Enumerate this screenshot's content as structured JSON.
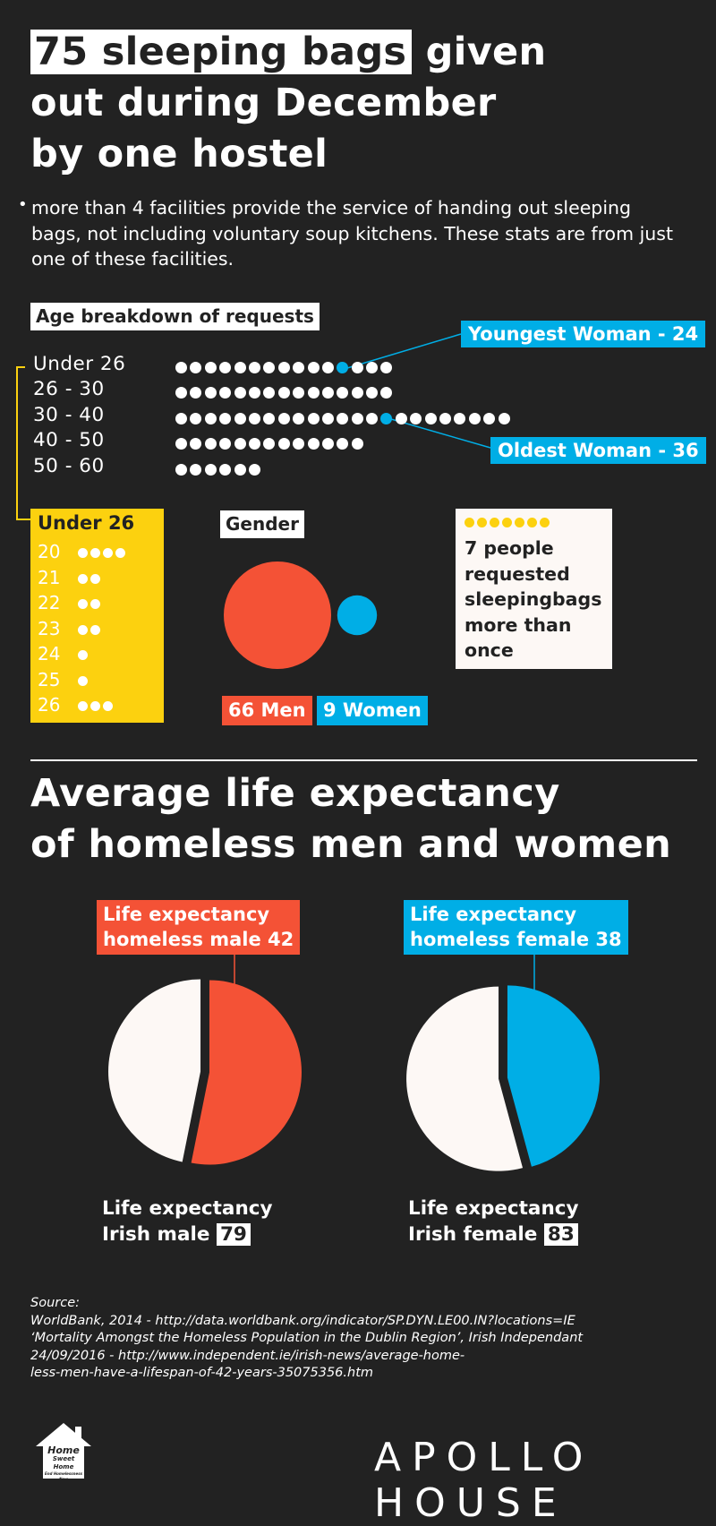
{
  "title": {
    "highlight": "75 sleeping bags",
    "rest1": " given",
    "line2": "out during December",
    "line3": "by one hostel"
  },
  "bullet": {
    "marker": "•",
    "text": "more than 4 facilities provide the service of handing out sleeping bags, not including voluntary soup kitchens. These stats are from just one of these facilities."
  },
  "age_section": {
    "heading": "Age breakdown of requests",
    "youngest_callout": "Youngest Woman - 24",
    "oldest_callout": "Oldest Woman - 36",
    "rows": [
      {
        "label": "Under 26",
        "count": 15,
        "blue_index": 11
      },
      {
        "label": "26 - 30",
        "count": 15,
        "blue_index": -1
      },
      {
        "label": "30 - 40",
        "count": 23,
        "blue_index": 14
      },
      {
        "label": "40 - 50",
        "count": 13,
        "blue_index": -1
      },
      {
        "label": "50 - 60",
        "count": 6,
        "blue_index": -1
      }
    ]
  },
  "under26_box": {
    "title": "Under 26",
    "rows": [
      {
        "age": "20",
        "count": 4
      },
      {
        "age": "21",
        "count": 2
      },
      {
        "age": "22",
        "count": 2
      },
      {
        "age": "23",
        "count": 2
      },
      {
        "age": "24",
        "count": 1
      },
      {
        "age": "25",
        "count": 1
      },
      {
        "age": "26",
        "count": 3
      }
    ]
  },
  "gender": {
    "heading": "Gender",
    "men_label": "66 Men",
    "women_label": "9 Women",
    "men": 66,
    "women": 9,
    "men_color": "#f45236",
    "women_color": "#00aee6"
  },
  "repeat_note": {
    "count": 7,
    "text": "7 people requested sleepingbags more than once",
    "dot_color": "#fcd10f"
  },
  "life_section": {
    "heading_line1": "Average life expectancy",
    "heading_line2": "of homeless men and women",
    "male": {
      "tag_line1": "Life expectancy",
      "tag_line2": "homeless male 42",
      "homeless": 42,
      "caption_line1": "Life expectancy",
      "caption_line2": "Irish male",
      "irish_value": "79",
      "irish": 79,
      "color": "#f45236"
    },
    "female": {
      "tag_line1": "Life expectancy",
      "tag_line2": "homeless female 38",
      "homeless": 38,
      "caption_line1": "Life expectancy",
      "caption_line2": "Irish female",
      "irish_value": "83",
      "irish": 83,
      "color": "#00aee6"
    }
  },
  "source": {
    "label": "Source:",
    "line1": "WorldBank, 2014 - http://data.worldbank.org/indicator/SP.DYN.LE00.IN?locations=IE",
    "line2": "‘Mortality Amongst the Homeless Population in the Dublin Region’, Irish Independant",
    "line3": "24/09/2016 - http://www.independent.ie/irish-news/average-home-",
    "line4": "less-men-have-a-lifespan-of-42-years-35075356.htm"
  },
  "logo_small": {
    "line1": "Home",
    "line2": "Sweet Home",
    "line3": "End Homelessness Now"
  },
  "logo_main": "APOLLO HOUSE"
}
